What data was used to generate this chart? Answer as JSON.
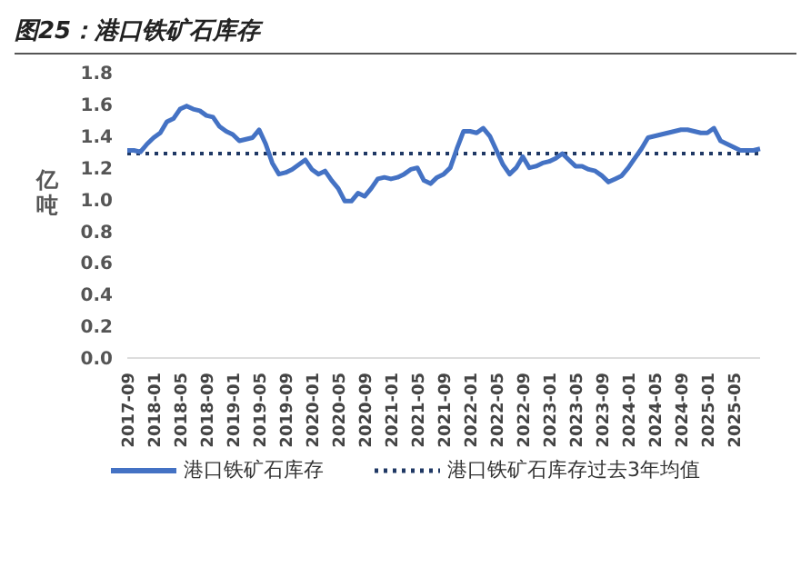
{
  "chart_data": {
    "type": "line",
    "title": "图25：港口铁矿石库存",
    "ylabel": "亿吨",
    "categories": [
      "2017-09",
      null,
      null,
      null,
      "2018-01",
      null,
      null,
      null,
      "2018-05",
      null,
      null,
      null,
      "2018-09",
      null,
      null,
      null,
      "2019-01",
      null,
      null,
      null,
      "2019-05",
      null,
      null,
      null,
      "2019-09",
      null,
      null,
      null,
      "2020-01",
      null,
      null,
      null,
      "2020-05",
      null,
      null,
      null,
      "2020-09",
      null,
      null,
      null,
      "2021-01",
      null,
      null,
      null,
      "2021-05",
      null,
      null,
      null,
      "2021-09",
      null,
      null,
      null,
      "2022-01",
      null,
      null,
      null,
      "2022-05",
      null,
      null,
      null,
      "2022-09",
      null,
      null,
      null,
      "2023-01",
      null,
      null,
      null,
      "2023-05",
      null,
      null,
      null,
      "2023-09",
      null,
      null,
      null,
      "2024-01",
      null,
      null,
      null,
      "2024-05",
      null,
      null,
      null,
      "2024-09",
      null,
      null,
      null,
      "2025-01",
      null,
      null,
      null,
      "2025-05",
      null,
      null,
      null,
      null
    ],
    "series": [
      {
        "name": "港口铁矿石库存",
        "color": "#4472c4",
        "line_style": "solid",
        "values": [
          1.31,
          1.31,
          1.3,
          1.35,
          1.39,
          1.42,
          1.49,
          1.51,
          1.57,
          1.59,
          1.57,
          1.56,
          1.53,
          1.52,
          1.46,
          1.43,
          1.41,
          1.37,
          1.38,
          1.39,
          1.44,
          1.35,
          1.23,
          1.16,
          1.17,
          1.19,
          1.22,
          1.25,
          1.19,
          1.16,
          1.18,
          1.12,
          1.07,
          0.99,
          0.99,
          1.04,
          1.02,
          1.07,
          1.13,
          1.14,
          1.13,
          1.14,
          1.16,
          1.19,
          1.2,
          1.12,
          1.1,
          1.14,
          1.16,
          1.2,
          1.32,
          1.43,
          1.43,
          1.42,
          1.45,
          1.4,
          1.31,
          1.22,
          1.16,
          1.2,
          1.27,
          1.2,
          1.21,
          1.23,
          1.24,
          1.26,
          1.29,
          1.25,
          1.21,
          1.21,
          1.19,
          1.18,
          1.15,
          1.11,
          1.13,
          1.15,
          1.2,
          1.26,
          1.32,
          1.39,
          1.4,
          1.41,
          1.42,
          1.43,
          1.44,
          1.44,
          1.43,
          1.42,
          1.42,
          1.45,
          1.37,
          1.35,
          1.33,
          1.31,
          1.31,
          1.31,
          1.32
        ]
      }
    ],
    "ref_lines": [
      {
        "axis": "y",
        "value": 1.29,
        "label": "港口铁矿石库存过去3年均值",
        "color": "#1f3864",
        "line_style": "dotted"
      }
    ],
    "ylim": [
      0,
      1.8
    ],
    "yticks": [
      {
        "value": 0,
        "label": "0.0"
      },
      0.2,
      0.4,
      0.6,
      0.8,
      {
        "value": 1,
        "label": "1.0"
      },
      1.2,
      1.4,
      1.6,
      1.8
    ],
    "grid": false,
    "legend": "bottom",
    "marker": "none"
  }
}
